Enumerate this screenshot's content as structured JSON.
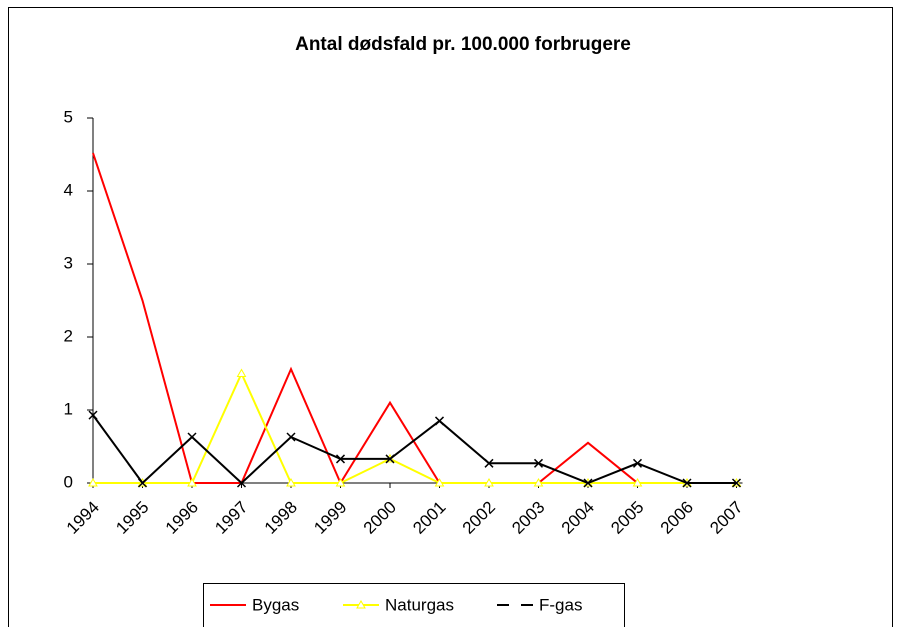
{
  "chart_data": {
    "type": "line",
    "title": "Antal dødsfald pr. 100.000 forbrugere",
    "categories": [
      "1994",
      "1995",
      "1996",
      "1997",
      "1998",
      "1999",
      "2000",
      "2001",
      "2002",
      "2003",
      "2004",
      "2005",
      "2006",
      "2007"
    ],
    "series": [
      {
        "name": "Bygas",
        "color": "#ff0000",
        "marker": "none",
        "values": [
          4.52,
          2.5,
          0,
          0,
          1.56,
          0,
          1.1,
          0,
          0,
          0,
          0.55,
          0,
          0,
          0
        ]
      },
      {
        "name": "Naturgas",
        "color": "#ffff00",
        "marker": "triangle",
        "values": [
          0,
          0,
          0,
          1.5,
          0,
          0,
          0.33,
          0,
          0,
          0,
          0,
          0,
          0,
          0
        ]
      },
      {
        "name": "F-gas",
        "color": "#000000",
        "marker": "x",
        "values": [
          0.93,
          0,
          0.63,
          0,
          0.63,
          0.33,
          0.33,
          0.85,
          0.27,
          0.27,
          0,
          0.27,
          0,
          0
        ]
      }
    ],
    "ylim": [
      0,
      5
    ],
    "yticks": [
      0,
      1,
      2,
      3,
      4,
      5
    ],
    "legend": "bottom"
  }
}
